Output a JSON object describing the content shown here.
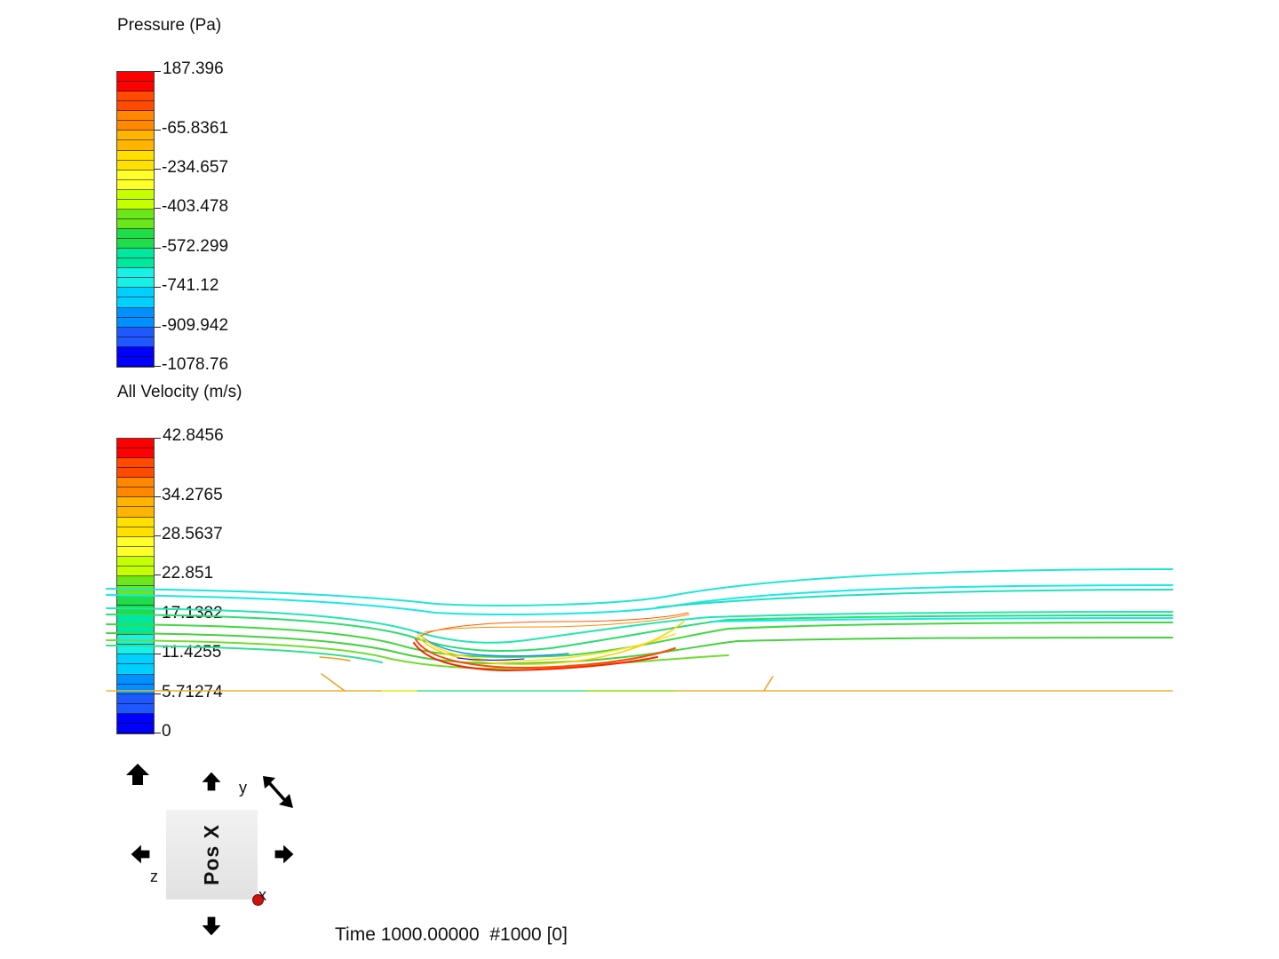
{
  "pressure_legend": {
    "title": "Pressure (Pa)",
    "labels": [
      "187.396",
      "-65.8361",
      "-234.657",
      "-403.478",
      "-572.299",
      "-741.12",
      "-909.942",
      "-1078.76"
    ]
  },
  "velocity_legend": {
    "title": "All Velocity (m/s)",
    "labels": [
      "42.8456",
      "34.2765",
      "28.5637",
      "22.851",
      "17.1382",
      "11.4255",
      "5.71274",
      "0"
    ]
  },
  "colormap": [
    "#ff0000",
    "#ff4a00",
    "#ff8800",
    "#ffb400",
    "#ffe000",
    "#ffff2a",
    "#c6ff00",
    "#6ae61a",
    "#1edc4a",
    "#00e8a0",
    "#18f0e8",
    "#00d0ff",
    "#0090ff",
    "#2058ff",
    "#0000ff"
  ],
  "view_cube": {
    "face_label": "Pos X",
    "axis_y": "y",
    "axis_z": "z",
    "axis_x": "x"
  },
  "status": {
    "time_text": "Time 1000.00000  #1000 [0]"
  }
}
